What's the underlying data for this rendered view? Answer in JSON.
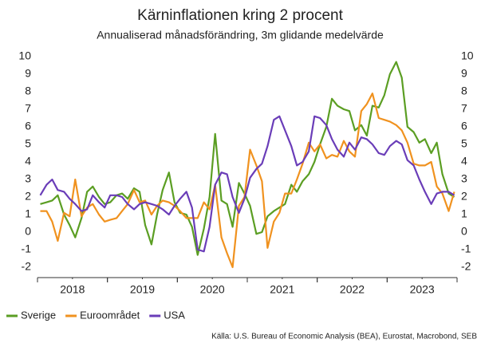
{
  "chart_data": {
    "type": "line",
    "title": "Kärninflationen kring 2 procent",
    "subtitle": "Annualiserad månadsförändring, 3m glidande medelvärde",
    "source": "Källa: U.S. Bureau of Economic Analysis (BEA), Eurostat, Macrobond, SEB",
    "x": [
      2018.04,
      2018.13,
      2018.21,
      2018.29,
      2018.38,
      2018.46,
      2018.54,
      2018.63,
      2018.71,
      2018.79,
      2018.88,
      2018.96,
      2019.04,
      2019.13,
      2019.21,
      2019.29,
      2019.38,
      2019.46,
      2019.54,
      2019.63,
      2019.71,
      2019.79,
      2019.88,
      2019.96,
      2020.04,
      2020.13,
      2020.21,
      2020.29,
      2020.38,
      2020.46,
      2020.54,
      2020.63,
      2020.71,
      2020.79,
      2020.88,
      2020.96,
      2021.04,
      2021.13,
      2021.21,
      2021.29,
      2021.38,
      2021.46,
      2021.54,
      2021.63,
      2021.71,
      2021.79,
      2021.88,
      2021.96,
      2022.04,
      2022.13,
      2022.21,
      2022.29,
      2022.38,
      2022.46,
      2022.54,
      2022.63,
      2022.71,
      2022.79,
      2022.88,
      2022.96,
      2023.04,
      2023.13,
      2023.21,
      2023.29,
      2023.38,
      2023.46,
      2023.54,
      2023.63,
      2023.71,
      2023.79,
      2023.88,
      2023.96
    ],
    "series": [
      {
        "name": "Sverige",
        "color": "#5b9e23",
        "values": [
          1.6,
          1.7,
          1.8,
          2.1,
          1.0,
          0.4,
          -0.3,
          0.8,
          2.3,
          2.6,
          2.0,
          1.6,
          1.7,
          2.1,
          2.2,
          1.9,
          2.5,
          2.3,
          0.4,
          -0.7,
          1.0,
          2.4,
          3.4,
          1.7,
          1.1,
          1.0,
          0.3,
          -1.3,
          0.2,
          2.0,
          5.6,
          1.8,
          1.6,
          0.3,
          2.8,
          2.2,
          1.5,
          -0.1,
          0.0,
          0.9,
          1.2,
          1.4,
          1.6,
          2.7,
          2.3,
          2.9,
          3.3,
          4.0,
          5.0,
          6.0,
          7.6,
          7.2,
          7.0,
          6.9,
          5.8,
          6.1,
          5.5,
          7.2,
          7.1,
          7.8,
          9.0,
          9.7,
          8.8,
          6.0,
          5.7,
          5.1,
          5.3,
          4.5,
          5.1,
          3.3,
          2.2,
          2.0
        ]
      },
      {
        "name": "Euroområdet",
        "color": "#f0921f",
        "values": [
          1.2,
          1.2,
          0.6,
          -0.5,
          1.1,
          0.9,
          3.0,
          0.9,
          1.4,
          1.6,
          1.0,
          0.6,
          0.7,
          0.8,
          1.2,
          1.6,
          2.4,
          1.7,
          1.8,
          1.0,
          1.5,
          1.8,
          1.7,
          1.5,
          1.2,
          0.8,
          0.8,
          0.8,
          1.7,
          1.3,
          2.7,
          -0.3,
          -1.2,
          -2.0,
          1.5,
          2.0,
          4.7,
          3.8,
          2.9,
          -0.9,
          0.6,
          1.1,
          2.2,
          2.2,
          3.0,
          3.9,
          5.1,
          4.6,
          5.0,
          4.2,
          4.4,
          4.3,
          5.2,
          4.6,
          4.3,
          6.9,
          7.3,
          7.9,
          6.5,
          6.4,
          6.3,
          6.1,
          5.8,
          5.1,
          3.9,
          3.8,
          3.8,
          4.0,
          2.6,
          2.2,
          1.2,
          2.3
        ]
      },
      {
        "name": "USA",
        "color": "#6a3db8",
        "values": [
          2.1,
          2.7,
          3.0,
          2.4,
          2.3,
          1.9,
          1.6,
          1.2,
          1.3,
          2.1,
          1.7,
          1.4,
          2.1,
          2.1,
          2.0,
          1.6,
          1.3,
          1.6,
          1.7,
          1.6,
          1.5,
          1.3,
          1.0,
          1.5,
          1.9,
          2.3,
          1.4,
          -1.0,
          -1.1,
          0.3,
          2.7,
          3.4,
          3.3,
          2.0,
          1.1,
          1.9,
          3.1,
          3.6,
          3.9,
          4.9,
          6.4,
          6.6,
          5.8,
          4.9,
          3.8,
          4.0,
          4.6,
          6.6,
          6.5,
          6.1,
          5.3,
          4.7,
          4.3,
          5.1,
          4.7,
          5.4,
          5.3,
          5.0,
          4.5,
          4.4,
          4.9,
          5.2,
          5.0,
          4.1,
          3.8,
          3.0,
          2.3,
          1.6,
          2.2,
          2.3,
          2.3,
          2.1
        ]
      }
    ],
    "xlim": [
      2018,
      2024
    ],
    "xticks": [
      {
        "value": 2018.5,
        "label": "2018"
      },
      {
        "value": 2019.5,
        "label": "2019"
      },
      {
        "value": 2020.5,
        "label": "2020"
      },
      {
        "value": 2021.5,
        "label": "2021"
      },
      {
        "value": 2022.5,
        "label": "2022"
      },
      {
        "value": 2023.5,
        "label": "2023"
      }
    ],
    "ylim": [
      -2,
      10
    ],
    "yticks": [
      -2,
      -1,
      0,
      1,
      2,
      3,
      4,
      5,
      6,
      7,
      8,
      9,
      10
    ],
    "grid": false,
    "legend": "bottom-left"
  }
}
